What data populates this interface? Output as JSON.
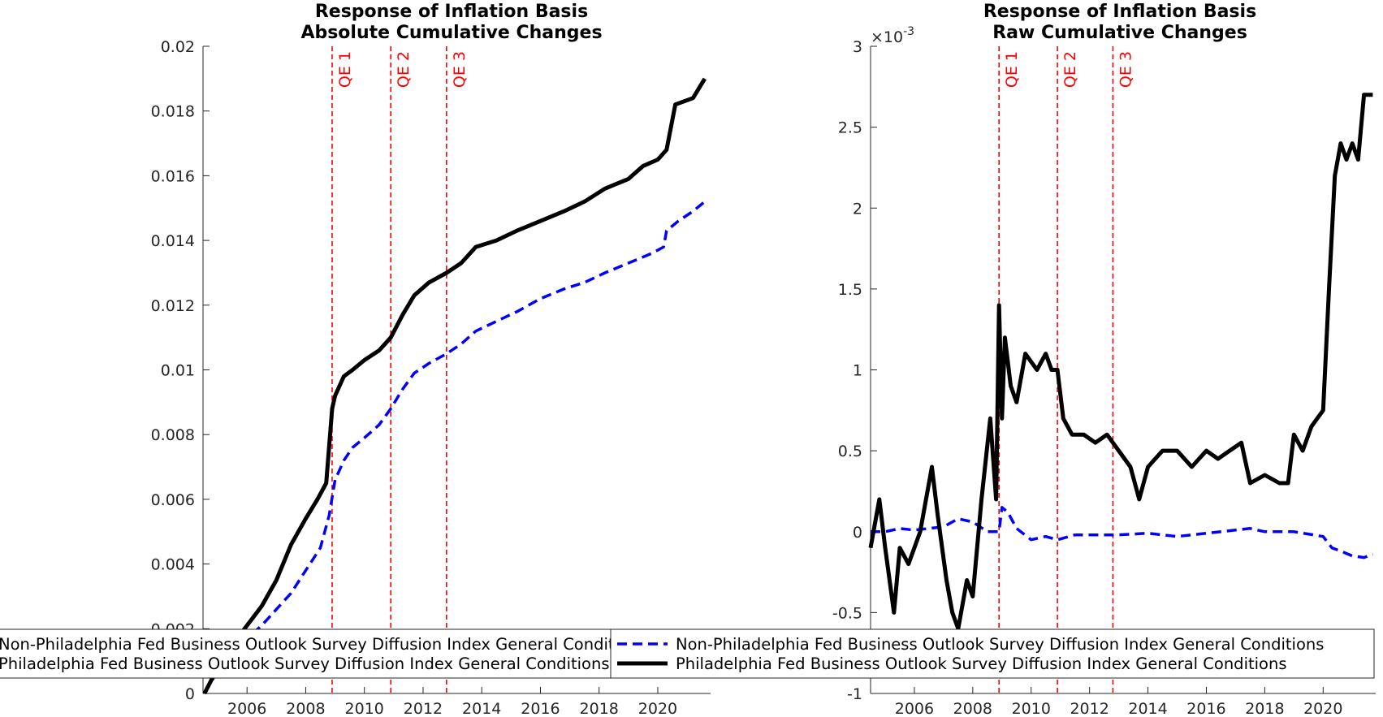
{
  "chart_data": [
    {
      "type": "line",
      "title": [
        "Response of Inflation Basis",
        "Absolute Cumulative Changes"
      ],
      "xlabel": "",
      "ylabel": "",
      "xlim": [
        2004.5,
        2021.8
      ],
      "ylim": [
        0,
        0.02
      ],
      "x_ticks": [
        2006,
        2008,
        2010,
        2012,
        2014,
        2016,
        2018,
        2020
      ],
      "x_tick_labels": [
        "2006",
        "2008",
        "2010",
        "2012",
        "2014",
        "2016",
        "2018",
        "2020"
      ],
      "y_ticks": [
        0,
        0.002,
        0.004,
        0.006,
        0.008,
        0.01,
        0.012,
        0.014,
        0.016,
        0.018,
        0.02
      ],
      "y_tick_labels": [
        "0",
        "0.002",
        "0.004",
        "0.006",
        "0.008",
        "0.01",
        "0.012",
        "0.014",
        "0.016",
        "0.018",
        "0.02"
      ],
      "exponent_label": "",
      "annotations": [
        {
          "text": "QE 1",
          "x": 2008.9
        },
        {
          "text": "QE 2",
          "x": 2010.9
        },
        {
          "text": "QE 3",
          "x": 2012.8
        }
      ],
      "series": [
        {
          "name": "Non-Philadelphia Fed Business Outlook Survey Diffusion Index General Conditions",
          "style": "dashed",
          "color": "#0000ff",
          "x": [
            2004.55,
            2005.0,
            2005.5,
            2006.0,
            2006.5,
            2007.0,
            2007.5,
            2008.0,
            2008.5,
            2008.8,
            2009.0,
            2009.3,
            2009.6,
            2010.0,
            2010.5,
            2010.9,
            2011.3,
            2011.7,
            2012.2,
            2012.8,
            2013.3,
            2013.8,
            2014.5,
            2015.2,
            2016.0,
            2016.8,
            2017.5,
            2018.2,
            2019.0,
            2019.8,
            2020.2,
            2020.3,
            2020.7,
            2021.2,
            2021.6
          ],
          "y": [
            0.0,
            0.0007,
            0.0012,
            0.0017,
            0.0021,
            0.0026,
            0.0031,
            0.0038,
            0.0045,
            0.0055,
            0.0066,
            0.0072,
            0.0076,
            0.0079,
            0.0083,
            0.0088,
            0.0094,
            0.0099,
            0.0102,
            0.0105,
            0.0108,
            0.0112,
            0.0115,
            0.0118,
            0.0122,
            0.0125,
            0.0127,
            0.013,
            0.0133,
            0.0136,
            0.0138,
            0.0143,
            0.0146,
            0.0149,
            0.0152
          ]
        },
        {
          "name": "Philadelphia Fed Business Outlook Survey Diffusion Index General Conditions",
          "style": "solid",
          "color": "#000000",
          "x": [
            2004.55,
            2005.0,
            2005.5,
            2006.0,
            2006.5,
            2007.0,
            2007.5,
            2008.0,
            2008.4,
            2008.7,
            2008.9,
            2009.0,
            2009.3,
            2009.6,
            2010.0,
            2010.5,
            2010.9,
            2011.3,
            2011.7,
            2012.2,
            2012.8,
            2013.3,
            2013.8,
            2014.5,
            2015.2,
            2016.0,
            2016.8,
            2017.5,
            2018.2,
            2019.0,
            2019.5,
            2020.0,
            2020.3,
            2020.6,
            2021.2,
            2021.6
          ],
          "y": [
            0.0,
            0.0008,
            0.0015,
            0.0021,
            0.0027,
            0.0035,
            0.0046,
            0.0054,
            0.006,
            0.0065,
            0.0088,
            0.0092,
            0.0098,
            0.01,
            0.0103,
            0.0106,
            0.011,
            0.0117,
            0.0123,
            0.0127,
            0.013,
            0.0133,
            0.0138,
            0.014,
            0.0143,
            0.0146,
            0.0149,
            0.0152,
            0.0156,
            0.0159,
            0.0163,
            0.0165,
            0.0168,
            0.0182,
            0.0184,
            0.019
          ]
        }
      ]
    },
    {
      "type": "line",
      "title": [
        "Response of Inflation Basis",
        "Raw Cumulative Changes"
      ],
      "xlabel": "",
      "ylabel": "",
      "xlim": [
        2004.5,
        2021.8
      ],
      "ylim": [
        -0.001,
        0.003
      ],
      "x_ticks": [
        2006,
        2008,
        2010,
        2012,
        2014,
        2016,
        2018,
        2020
      ],
      "x_tick_labels": [
        "2006",
        "2008",
        "2010",
        "2012",
        "2014",
        "2016",
        "2018",
        "2020"
      ],
      "y_ticks": [
        -0.001,
        -0.0005,
        0,
        0.0005,
        0.001,
        0.0015,
        0.002,
        0.0025,
        0.003
      ],
      "y_tick_labels": [
        "-1",
        "-0.5",
        "0",
        "0.5",
        "1",
        "1.5",
        "2",
        "2.5",
        "3"
      ],
      "exponent_label": "×10",
      "exponent_power": "-3",
      "annotations": [
        {
          "text": "QE 1",
          "x": 2008.9
        },
        {
          "text": "QE 2",
          "x": 2010.9
        },
        {
          "text": "QE 3",
          "x": 2012.8
        }
      ],
      "series": [
        {
          "name": "Non-Philadelphia Fed Business Outlook Survey Diffusion Index General Conditions",
          "style": "dashed",
          "color": "#0000ff",
          "x": [
            2004.5,
            2005.0,
            2005.5,
            2006.0,
            2006.5,
            2007.0,
            2007.5,
            2008.0,
            2008.5,
            2008.9,
            2009.0,
            2009.2,
            2009.5,
            2010.0,
            2010.5,
            2010.9,
            2011.5,
            2012.0,
            2013.0,
            2014.0,
            2015.0,
            2016.0,
            2017.0,
            2017.5,
            2018.0,
            2019.0,
            2020.0,
            2020.3,
            2020.6,
            2021.0,
            2021.4,
            2021.7
          ],
          "y": [
            0.0,
            0.0,
            2e-05,
            1e-05,
            2e-05,
            3e-05,
            8e-05,
            6e-05,
            0.0,
            0.0,
            0.00015,
            0.00012,
            2e-05,
            -5e-05,
            -3e-05,
            -5e-05,
            -2e-05,
            -2e-05,
            -2e-05,
            -1e-05,
            -3e-05,
            -1e-05,
            1e-05,
            2e-05,
            0.0,
            0.0,
            -3e-05,
            -0.0001,
            -0.00012,
            -0.00015,
            -0.00016,
            -0.00014
          ]
        },
        {
          "name": "Philadelphia Fed Business Outlook Survey Diffusion Index General Conditions",
          "style": "solid",
          "color": "#000000",
          "x": [
            2004.5,
            2004.8,
            2005.0,
            2005.3,
            2005.5,
            2005.8,
            2006.2,
            2006.6,
            2006.8,
            2007.1,
            2007.3,
            2007.5,
            2007.8,
            2008.0,
            2008.3,
            2008.6,
            2008.8,
            2008.9,
            2009.0,
            2009.1,
            2009.3,
            2009.5,
            2009.8,
            2010.2,
            2010.5,
            2010.7,
            2010.9,
            2011.1,
            2011.4,
            2011.8,
            2012.2,
            2012.6,
            2013.0,
            2013.4,
            2013.7,
            2014.0,
            2014.5,
            2015.0,
            2015.5,
            2016.0,
            2016.4,
            2016.8,
            2017.2,
            2017.5,
            2018.0,
            2018.5,
            2018.8,
            2019.0,
            2019.3,
            2019.6,
            2020.0,
            2020.2,
            2020.4,
            2020.6,
            2020.8,
            2021.0,
            2021.2,
            2021.4,
            2021.7
          ],
          "y": [
            -0.0001,
            0.0002,
            -0.0001,
            -0.0005,
            -0.0001,
            -0.0002,
            0.0,
            0.0004,
            0.0001,
            -0.0003,
            -0.0005,
            -0.0006,
            -0.0003,
            -0.0004,
            0.0002,
            0.0007,
            0.0002,
            0.0014,
            0.0007,
            0.0012,
            0.0009,
            0.0008,
            0.0011,
            0.001,
            0.0011,
            0.001,
            0.001,
            0.0007,
            0.0006,
            0.0006,
            0.00055,
            0.0006,
            0.0005,
            0.0004,
            0.0002,
            0.0004,
            0.0005,
            0.0005,
            0.0004,
            0.0005,
            0.00045,
            0.0005,
            0.00055,
            0.0003,
            0.00035,
            0.0003,
            0.0003,
            0.0006,
            0.0005,
            0.00065,
            0.00075,
            0.0015,
            0.0022,
            0.0024,
            0.0023,
            0.0024,
            0.0023,
            0.0027,
            0.0027
          ]
        }
      ]
    }
  ],
  "legend": {
    "entries": [
      {
        "label": "Non-Philadelphia Fed Business Outlook Survey Diffusion Index General Conditions",
        "style": "dashed",
        "color": "#0000ff"
      },
      {
        "label": "Philadelphia Fed Business Outlook Survey Diffusion Index General Conditions",
        "style": "solid",
        "color": "#000000"
      }
    ]
  }
}
